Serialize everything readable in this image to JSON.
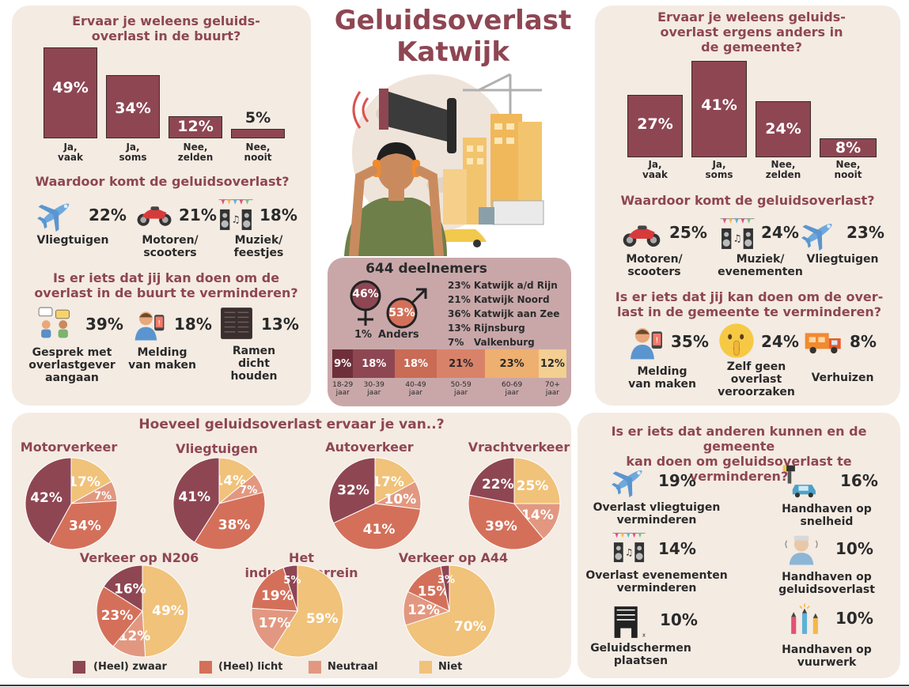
{
  "title": {
    "line1": "Geluidsoverlast",
    "line2": "Katwijk"
  },
  "colors": {
    "zwaar": "#8e4653",
    "licht": "#d4705a",
    "neutraal": "#e29880",
    "niet": "#f0c27a",
    "panel": "#f4ebe3",
    "accent": "#8e4653"
  },
  "buurt": {
    "heading": "Ervaar je weleens geluids-\noverlast in de buurt?",
    "bars": [
      {
        "value": 49,
        "label_text": "49%",
        "cat": "Ja,\nvaak"
      },
      {
        "value": 34,
        "label_text": "34%",
        "cat": "Ja,\nsoms"
      },
      {
        "value": 12,
        "label_text": "12%",
        "cat": "Nee,\nzelden"
      },
      {
        "value": 5,
        "label_text": "5%",
        "cat": "Nee,\nnooit"
      }
    ],
    "cause_heading": "Waardoor komt de geluidsoverlast?",
    "causes": [
      {
        "pct": "22%",
        "label": "Vliegtuigen",
        "icon": "airplane-icon"
      },
      {
        "pct": "21%",
        "label": "Motoren/\nscooters",
        "icon": "motorcycle-icon"
      },
      {
        "pct": "18%",
        "label": "Muziek/\nfeestjes",
        "icon": "speaker-icon"
      }
    ],
    "action_heading": "Is er iets dat jij kan doen om de\noverlast in de buurt te verminderen?",
    "actions": [
      {
        "pct": "39%",
        "label": "Gesprek met\noverlastgever\naangaan",
        "icon": "conversation-icon"
      },
      {
        "pct": "18%",
        "label": "Melding\nvan maken",
        "icon": "report-icon"
      },
      {
        "pct": "13%",
        "label": "Ramen\ndicht\nhouden",
        "icon": "shutters-icon"
      }
    ]
  },
  "gemeente": {
    "heading": "Ervaar je weleens geluids-\noverlast ergens anders in\nde gemeente?",
    "bars": [
      {
        "value": 27,
        "label_text": "27%",
        "cat": "Ja,\nvaak"
      },
      {
        "value": 41,
        "label_text": "41%",
        "cat": "Ja,\nsoms"
      },
      {
        "value": 24,
        "label_text": "24%",
        "cat": "Nee,\nzelden"
      },
      {
        "value": 8,
        "label_text": "8%",
        "cat": "Nee,\nnooit"
      }
    ],
    "cause_heading": "Waardoor komt de geluidsoverlast?",
    "causes": [
      {
        "pct": "25%",
        "label": "Motoren/\nscooters",
        "icon": "motorcycle-icon"
      },
      {
        "pct": "24%",
        "label": "Muziek/\nevenementen",
        "icon": "speaker-icon"
      },
      {
        "pct": "23%",
        "label": "Vliegtuigen",
        "icon": "airplane-icon"
      }
    ],
    "action_heading": "Is er iets dat jij kan doen om de over-\nlast in de gemeente te verminderen?",
    "actions": [
      {
        "pct": "35%",
        "label": "Melding\nvan maken",
        "icon": "report-icon"
      },
      {
        "pct": "24%",
        "label": "Zelf geen\noverlast\nveroorzaken",
        "icon": "shush-emoji-icon"
      },
      {
        "pct": "8%",
        "label": "Verhuizen",
        "icon": "moving-truck-icon"
      }
    ]
  },
  "deelnemers": {
    "title": "644 deelnemers",
    "female": "46%",
    "male": "53%",
    "other": "1%",
    "other_label": "Anders",
    "places": [
      "23% Katwijk a/d Rijn",
      "21% Katwijk Noord",
      "36% Katwijk aan Zee",
      "13% Rijnsburg",
      "7%   Valkenburg"
    ],
    "ages": [
      {
        "value": 9,
        "pct": "9%",
        "label": "18-29\njaar"
      },
      {
        "value": 18,
        "pct": "18%",
        "label": "30-39\njaar"
      },
      {
        "value": 18,
        "pct": "18%",
        "label": "40-49\njaar"
      },
      {
        "value": 21,
        "pct": "21%",
        "label": "50-59\njaar"
      },
      {
        "value": 23,
        "pct": "23%",
        "label": "60-69\njaar"
      },
      {
        "value": 12,
        "pct": "12%",
        "label": "70+\njaar"
      }
    ],
    "age_colors": [
      "#6e2f3a",
      "#8e4653",
      "#c96b55",
      "#d9826a",
      "#eeb070",
      "#f3cf92"
    ]
  },
  "hoeveel": {
    "heading": "Hoeveel geluidsoverlast ervaar je van..?",
    "legend": [
      "(Heel) zwaar",
      "(Heel) licht",
      "Neutraal",
      "Niet"
    ]
  },
  "chart_data": [
    {
      "type": "pie",
      "title": "Motorverkeer",
      "labels": [
        "(Heel) zwaar",
        "(Heel) licht",
        "Neutraal",
        "Niet"
      ],
      "values": [
        42,
        34,
        7,
        17
      ]
    },
    {
      "type": "pie",
      "title": "Vliegtuigen",
      "labels": [
        "(Heel) zwaar",
        "(Heel) licht",
        "Neutraal",
        "Niet"
      ],
      "values": [
        41,
        38,
        7,
        14
      ]
    },
    {
      "type": "pie",
      "title": "Autoverkeer",
      "labels": [
        "(Heel) zwaar",
        "(Heel) licht",
        "Neutraal",
        "Niet"
      ],
      "values": [
        32,
        41,
        10,
        17
      ]
    },
    {
      "type": "pie",
      "title": "Vrachtverkeer",
      "labels": [
        "(Heel) zwaar",
        "(Heel) licht",
        "Neutraal",
        "Niet"
      ],
      "values": [
        22,
        39,
        14,
        25
      ]
    },
    {
      "type": "pie",
      "title": "Verkeer op N206",
      "labels": [
        "(Heel) zwaar",
        "(Heel) licht",
        "Neutraal",
        "Niet"
      ],
      "values": [
        16,
        23,
        12,
        49
      ]
    },
    {
      "type": "pie",
      "title": "Het industrieterrein",
      "labels": [
        "(Heel) zwaar",
        "(Heel) licht",
        "Neutraal",
        "Niet"
      ],
      "values": [
        5,
        19,
        17,
        59
      ]
    },
    {
      "type": "pie",
      "title": "Verkeer op A44",
      "labels": [
        "(Heel) zwaar",
        "(Heel) licht",
        "Neutraal",
        "Niet"
      ],
      "values": [
        3,
        15,
        12,
        70
      ]
    }
  ],
  "anderen": {
    "heading": "Is er iets dat anderen kunnen en de gemeente\nkan doen om geluidsoverlast te verminderen?",
    "items": [
      {
        "pct": "19%",
        "label": "Overlast vliegtuigen\nverminderen",
        "icon": "airplane-icon"
      },
      {
        "pct": "16%",
        "label": "Handhaven op\nsnelheid",
        "icon": "speed-camera-icon"
      },
      {
        "pct": "14%",
        "label": "Overlast evenementen\nverminderen",
        "icon": "speaker-icon"
      },
      {
        "pct": "10%",
        "label": "Handhaven op\ngeluidsoverlast",
        "icon": "loud-person-icon"
      },
      {
        "pct": "10%",
        "label": "Geluidschermen\nplaatsen",
        "icon": "sound-barrier-icon"
      },
      {
        "pct": "10%",
        "label": "Handhaven op\nvuurwerk",
        "icon": "fireworks-icon"
      }
    ]
  }
}
